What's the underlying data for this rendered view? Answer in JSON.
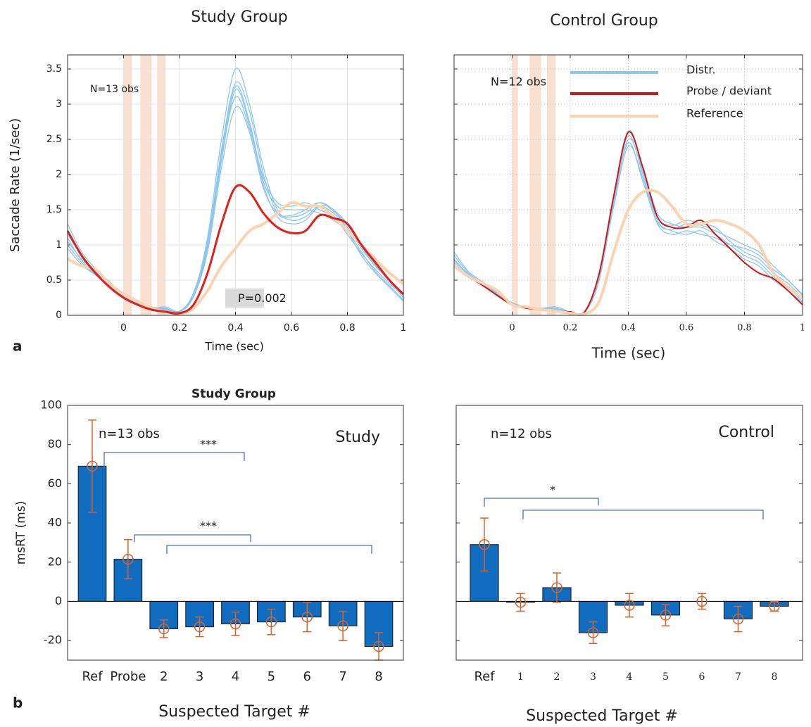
{
  "panel_labels": [
    "a",
    "b"
  ],
  "chart_data": [
    {
      "type": "line",
      "title": "Study Group",
      "xlabel": "Time (sec)",
      "ylabel": "Saccade Rate (1/sec)",
      "n_label": "N=13 obs",
      "p_label": "P=0.002",
      "x": [
        -0.2,
        -0.15,
        -0.1,
        -0.05,
        0,
        0.05,
        0.1,
        0.15,
        0.2,
        0.25,
        0.3,
        0.35,
        0.4,
        0.45,
        0.5,
        0.55,
        0.6,
        0.65,
        0.7,
        0.75,
        0.8,
        0.85,
        0.9,
        0.95,
        1
      ],
      "xlim": [
        -0.2,
        1
      ],
      "xticks": [
        0,
        0.2,
        0.4,
        0.6,
        0.8,
        1
      ],
      "ylim": [
        0,
        3.7
      ],
      "yticks": [
        0,
        0.5,
        1,
        1.5,
        2,
        2.5,
        3,
        3.5
      ],
      "ytick_labels": true,
      "grid": true,
      "grid_style": "solid",
      "legend": false,
      "bands": [
        [
          0,
          0.03
        ],
        [
          0.06,
          0.1
        ],
        [
          0.12,
          0.15
        ]
      ],
      "band_color": "#f8d6c2",
      "series": [
        {
          "color": "#8cc6ef",
          "width": 1.3,
          "lines": [
            [
              1.05,
              0.8,
              0.62,
              0.45,
              0.27,
              0.16,
              0.1,
              0.12,
              0.06,
              0.3,
              1.1,
              2.5,
              3.5,
              3.0,
              2.1,
              1.5,
              1.35,
              1.4,
              1.55,
              1.45,
              1.25,
              0.95,
              0.7,
              0.5,
              0.3
            ],
            [
              1.0,
              0.75,
              0.58,
              0.42,
              0.25,
              0.15,
              0.09,
              0.08,
              0.05,
              0.28,
              1.0,
              2.35,
              3.3,
              2.9,
              2.0,
              1.45,
              1.4,
              1.45,
              1.6,
              1.5,
              1.3,
              1.0,
              0.72,
              0.48,
              0.25
            ],
            [
              1.15,
              0.85,
              0.62,
              0.48,
              0.26,
              0.14,
              0.1,
              0.07,
              0.05,
              0.32,
              1.05,
              2.3,
              3.25,
              2.75,
              1.9,
              1.55,
              1.5,
              1.5,
              1.45,
              1.35,
              1.2,
              0.9,
              0.62,
              0.42,
              0.22
            ],
            [
              1.3,
              0.9,
              0.66,
              0.44,
              0.24,
              0.15,
              0.11,
              0.1,
              0.05,
              0.27,
              0.95,
              2.2,
              3.2,
              2.7,
              1.85,
              1.4,
              1.3,
              1.35,
              1.55,
              1.5,
              1.2,
              0.85,
              0.6,
              0.4,
              0.2
            ],
            [
              1.1,
              0.78,
              0.6,
              0.47,
              0.28,
              0.17,
              0.12,
              0.08,
              0.06,
              0.3,
              1.0,
              2.25,
              3.1,
              2.65,
              1.95,
              1.6,
              1.55,
              1.6,
              1.5,
              1.4,
              1.15,
              0.88,
              0.65,
              0.45,
              0.28
            ],
            [
              0.95,
              0.72,
              0.57,
              0.43,
              0.25,
              0.16,
              0.1,
              0.09,
              0.05,
              0.26,
              0.9,
              2.1,
              2.95,
              2.6,
              1.8,
              1.45,
              1.42,
              1.5,
              1.6,
              1.48,
              1.28,
              0.98,
              0.7,
              0.5,
              0.3
            ]
          ]
        },
        {
          "color": "#fcd3b1",
          "width": 4,
          "lines": [
            [
              0.8,
              0.7,
              0.65,
              0.45,
              0.3,
              0.2,
              0.1,
              0.05,
              0.02,
              0.1,
              0.35,
              0.7,
              0.95,
              1.2,
              1.3,
              1.45,
              1.6,
              1.55,
              1.55,
              1.4,
              1.2,
              1.0,
              0.8,
              0.6,
              0.45
            ]
          ]
        },
        {
          "color": "#e0201b",
          "width": 3,
          "lines": [
            [
              1.2,
              0.85,
              0.6,
              0.4,
              0.25,
              0.15,
              0.08,
              0.05,
              0.03,
              0.15,
              0.6,
              1.3,
              1.82,
              1.75,
              1.45,
              1.25,
              1.17,
              1.2,
              1.42,
              1.38,
              1.3,
              1.0,
              0.75,
              0.5,
              0.3
            ]
          ]
        }
      ]
    },
    {
      "type": "line",
      "title": "Control Group",
      "xlabel": "Time (sec)",
      "n_label": "N=12 obs",
      "x": [
        -0.2,
        -0.15,
        -0.1,
        -0.05,
        0,
        0.05,
        0.1,
        0.15,
        0.2,
        0.25,
        0.3,
        0.35,
        0.4,
        0.45,
        0.5,
        0.55,
        0.6,
        0.65,
        0.7,
        0.75,
        0.8,
        0.85,
        0.9,
        0.95,
        1
      ],
      "xlim": [
        -0.2,
        1
      ],
      "xticks": [
        0,
        0.2,
        0.4,
        0.6,
        0.8,
        1
      ],
      "ylim": [
        0,
        3.7
      ],
      "yticks": [
        0,
        0.5,
        1,
        1.5,
        2,
        2.5,
        3,
        3.5
      ],
      "ytick_labels": false,
      "grid": true,
      "grid_style": "dotted",
      "legend": true,
      "bands": [
        [
          0,
          0.02
        ],
        [
          0.06,
          0.1
        ],
        [
          0.12,
          0.15
        ]
      ],
      "band_color": "#f8d6c2",
      "series": [
        {
          "name": "Distr.",
          "color": "#8cc6ef",
          "width": 1.3,
          "lines": [
            [
              0.85,
              0.6,
              0.45,
              0.3,
              0.17,
              0.11,
              0.09,
              0.1,
              0.05,
              0.05,
              0.55,
              1.65,
              2.62,
              2.1,
              1.45,
              1.3,
              1.25,
              1.25,
              1.15,
              1.0,
              0.85,
              0.75,
              0.55,
              0.4,
              0.2
            ],
            [
              0.8,
              0.58,
              0.43,
              0.28,
              0.14,
              0.1,
              0.07,
              0.07,
              0.04,
              0.06,
              0.6,
              1.7,
              2.55,
              2.0,
              1.35,
              1.2,
              1.15,
              1.2,
              1.05,
              0.95,
              0.8,
              0.7,
              0.5,
              0.35,
              0.18
            ],
            [
              0.75,
              0.55,
              0.45,
              0.32,
              0.18,
              0.12,
              0.1,
              0.12,
              0.05,
              0.04,
              0.5,
              1.6,
              2.5,
              2.05,
              1.4,
              1.28,
              1.35,
              1.3,
              1.25,
              1.05,
              0.9,
              0.8,
              0.6,
              0.45,
              0.25
            ],
            [
              0.9,
              0.62,
              0.47,
              0.3,
              0.16,
              0.1,
              0.08,
              0.08,
              0.04,
              0.05,
              0.55,
              1.55,
              2.4,
              1.95,
              1.3,
              1.15,
              1.2,
              1.15,
              1.1,
              1.0,
              0.95,
              0.85,
              0.65,
              0.5,
              0.28
            ],
            [
              0.78,
              0.57,
              0.44,
              0.27,
              0.15,
              0.11,
              0.09,
              0.09,
              0.05,
              0.06,
              0.58,
              1.62,
              2.45,
              1.9,
              1.32,
              1.22,
              1.3,
              1.28,
              1.2,
              1.1,
              1.0,
              0.9,
              0.7,
              0.5,
              0.3
            ]
          ]
        },
        {
          "name": "Probe / deviant",
          "color": "#d01818",
          "width": 2,
          "lines": [
            [
              0.7,
              0.55,
              0.42,
              0.28,
              0.15,
              0.1,
              0.08,
              0.06,
              0.05,
              0.05,
              0.6,
              1.7,
              2.6,
              2.1,
              1.4,
              1.25,
              1.25,
              1.35,
              1.15,
              0.95,
              0.75,
              0.6,
              0.52,
              0.35,
              0.15
            ]
          ]
        },
        {
          "name": "Reference",
          "color": "#fcd3b1",
          "width": 4,
          "lines": [
            [
              0.7,
              0.55,
              0.45,
              0.35,
              0.15,
              0.12,
              0.08,
              0.06,
              0.03,
              0.02,
              0.2,
              0.9,
              1.5,
              1.75,
              1.75,
              1.55,
              1.3,
              1.3,
              1.35,
              1.3,
              1.2,
              1.0,
              0.6,
              0.4,
              0.25
            ]
          ]
        }
      ]
    },
    {
      "type": "bar",
      "title": "Study Group",
      "xlabel": "Suspected Target #",
      "ylabel": "msRT (ms)",
      "n_label": "n=13 obs",
      "group_label": "Study",
      "categories": [
        "Ref",
        "Probe",
        "2",
        "3",
        "4",
        "5",
        "6",
        "7",
        "8"
      ],
      "values": [
        69,
        21.5,
        -14,
        -13,
        -11.5,
        -10.5,
        -8,
        -12.5,
        -23
      ],
      "errors": [
        23.5,
        10,
        4.5,
        5,
        6,
        6.5,
        7.5,
        7.5,
        7
      ],
      "color": "#0f6cbf",
      "error_color": "#d9622b",
      "ylim": [
        -30,
        100
      ],
      "yticks": [
        -20,
        0,
        20,
        40,
        60,
        80,
        100
      ],
      "ytick_labels": true,
      "brackets": [
        {
          "label": "***"
        },
        {
          "label": "***"
        }
      ],
      "bracket_color": "#4a6fc0"
    },
    {
      "type": "bar",
      "xlabel": "Suspected Target #",
      "n_label": "n=12 obs",
      "group_label": "Control",
      "categories": [
        "Ref",
        "1",
        "2",
        "3",
        "4",
        "5",
        "6",
        "7",
        "8"
      ],
      "values": [
        29,
        -0.5,
        7,
        -16,
        -2,
        -7,
        0,
        -9,
        -2.5
      ],
      "errors": [
        13.5,
        4.5,
        7.5,
        5.5,
        6,
        5.5,
        4,
        6.5,
        2.5
      ],
      "color": "#0f6cbf",
      "error_color": "#d9622b",
      "ylim": [
        -30,
        100
      ],
      "yticks": [
        -20,
        0,
        20,
        40,
        60,
        80,
        100
      ],
      "ytick_labels": false,
      "brackets": [
        {
          "label": "*"
        }
      ],
      "bracket_color": "#4a6fc0"
    }
  ]
}
